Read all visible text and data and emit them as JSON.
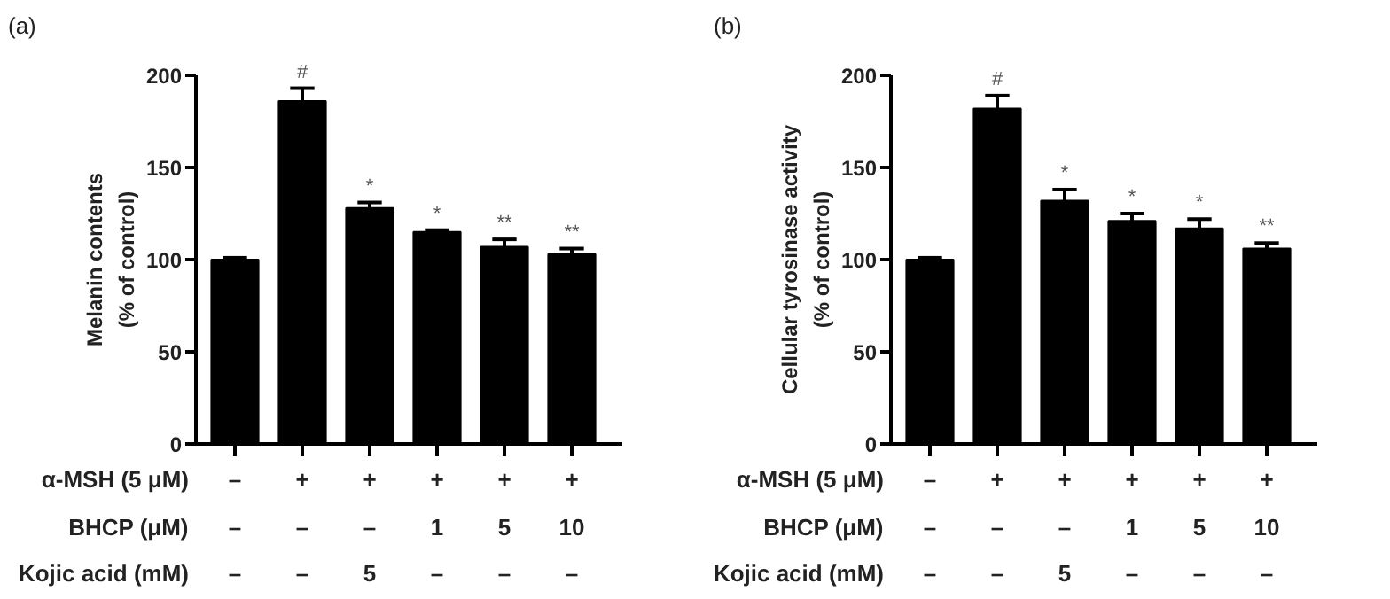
{
  "chart_data": [
    {
      "type": "bar",
      "title": "(a)",
      "ylabel": "Melanin contents\n(% of control)",
      "categories": [
        "–\n–\n–",
        "+\n–\n–",
        "+\n–\n5",
        "+\n1\n–",
        "+\n5\n–",
        "+\n10\n–"
      ],
      "annotations": [
        "α-MSH (5 μM)",
        "BHCP (μM)",
        "Kojic acid (mM)"
      ],
      "series": [
        {
          "color": "#000000",
          "values": [
            100,
            186,
            128,
            115,
            107,
            103
          ],
          "errors": [
            1,
            7,
            3,
            1,
            4,
            3
          ],
          "value_labels": [
            null,
            "#",
            "*",
            "*",
            "**",
            "**"
          ]
        }
      ],
      "ylim": [
        0,
        200
      ],
      "yticks": [
        0,
        50,
        100,
        150,
        200
      ],
      "grid": false
    },
    {
      "type": "bar",
      "title": "(b)",
      "ylabel": "Cellular tyrosinase activity\n(% of control)",
      "categories": [
        "–\n–\n–",
        "+\n–\n–",
        "+\n–\n5",
        "+\n1\n–",
        "+\n5\n–",
        "+\n10\n–"
      ],
      "annotations": [
        "α-MSH (5 μM)",
        "BHCP (μM)",
        "Kojic acid (mM)"
      ],
      "series": [
        {
          "color": "#000000",
          "values": [
            100,
            182,
            132,
            121,
            117,
            106
          ],
          "errors": [
            1,
            7,
            6,
            4,
            5,
            3
          ],
          "value_labels": [
            null,
            "#",
            "*",
            "*",
            "*",
            "**"
          ]
        }
      ],
      "ylim": [
        0,
        200
      ],
      "yticks": [
        0,
        50,
        100,
        150,
        200
      ],
      "grid": false
    }
  ]
}
